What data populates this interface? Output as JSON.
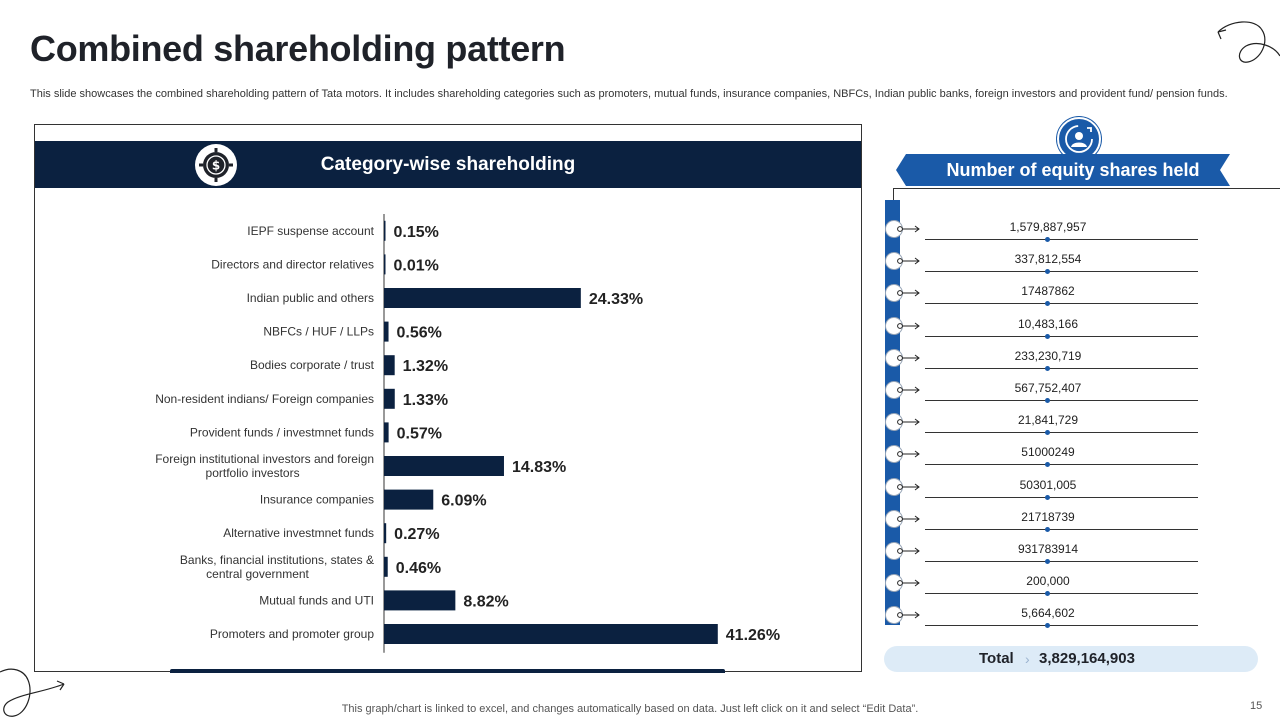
{
  "slide": {
    "title": "Combined shareholding pattern",
    "subtitle": "This slide showcases the combined shareholding pattern of Tata motors. It includes shareholding categories such as promoters, mutual funds, insurance companies, NBFCs, Indian public banks, foreign investors and provident fund/ pension funds.",
    "footnote": "This graph/chart is linked to excel, and changes automatically based on data. Just left click on it and select “Edit Data”.",
    "page_number": "15"
  },
  "colors": {
    "navy": "#0b2140",
    "blue": "#1a5aa8",
    "light_blue": "#ddebf7"
  },
  "chart_data": {
    "type": "bar",
    "orientation": "horizontal",
    "title": "Category-wise shareholding",
    "xlabel": "",
    "ylabel": "",
    "xlim": [
      0,
      45
    ],
    "unit": "%",
    "categories": [
      "IEPF suspense account",
      "Directors and director relatives",
      "Indian public and others",
      "NBFCs / HUF / LLPs",
      "Bodies corporate / trust",
      "Non-resident indians/ Foreign companies",
      "Provident funds / investmnet funds",
      "Foreign institutional investors and foreign portfolio investors",
      "Insurance companies",
      "Alternative investmnet funds",
      "Banks, financial institutions, states & central government",
      "Mutual funds and UTI",
      "Promoters and promoter group"
    ],
    "values": [
      0.15,
      0.01,
      24.33,
      0.56,
      1.32,
      1.33,
      0.57,
      14.83,
      6.09,
      0.27,
      0.46,
      8.82,
      41.26
    ],
    "data_labels": [
      "0.15%",
      "0.01%",
      "24.33%",
      "0.56%",
      "1.32%",
      "1.33%",
      "0.57%",
      "14.83%",
      "6.09%",
      "0.27%",
      "0.46%",
      "8.82%",
      "41.26%"
    ]
  },
  "equity": {
    "title": "Number of equity shares held",
    "values": [
      "1,579,887,957",
      "337,812,554",
      "17487862",
      "10,483,166",
      "233,230,719",
      "567,752,407",
      "21,841,729",
      "51000249",
      "50301,005",
      "21718739",
      "931783914",
      "200,000",
      "5,664,602"
    ],
    "total_label": "Total",
    "total_value": "3,829,164,903"
  }
}
